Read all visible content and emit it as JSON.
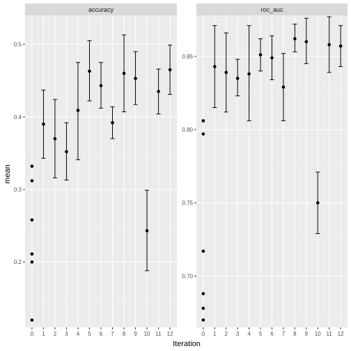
{
  "chart_data": {
    "type": "scatter",
    "xlabel": "Iteration",
    "ylabel": "mean",
    "x_ticks": [
      0,
      1,
      2,
      3,
      4,
      5,
      6,
      7,
      8,
      9,
      10,
      11,
      12
    ],
    "xlim": [
      -0.6,
      12.6
    ],
    "panels": [
      {
        "strip": "accuracy",
        "ylim": [
          0.11,
          0.54
        ],
        "y_ticks": [
          0.2,
          0.3,
          0.4,
          0.5
        ],
        "y_tick_labels": [
          "0.2",
          "0.3",
          "0.4",
          "0.5"
        ],
        "points": [
          {
            "x": 0,
            "y": 0.332
          },
          {
            "x": 0,
            "y": 0.312
          },
          {
            "x": 0,
            "y": 0.258
          },
          {
            "x": 0,
            "y": 0.211
          },
          {
            "x": 0,
            "y": 0.2
          },
          {
            "x": 0,
            "y": 0.12
          },
          {
            "x": 1,
            "y": 0.39,
            "ymin": 0.343,
            "ymax": 0.437
          },
          {
            "x": 2,
            "y": 0.37,
            "ymin": 0.316,
            "ymax": 0.424
          },
          {
            "x": 3,
            "y": 0.352,
            "ymin": 0.313,
            "ymax": 0.392
          },
          {
            "x": 4,
            "y": 0.409,
            "ymin": 0.341,
            "ymax": 0.475
          },
          {
            "x": 5,
            "y": 0.463,
            "ymin": 0.422,
            "ymax": 0.505
          },
          {
            "x": 6,
            "y": 0.443,
            "ymin": 0.412,
            "ymax": 0.475
          },
          {
            "x": 7,
            "y": 0.392,
            "ymin": 0.37,
            "ymax": 0.414
          },
          {
            "x": 8,
            "y": 0.46,
            "ymin": 0.407,
            "ymax": 0.513
          },
          {
            "x": 9,
            "y": 0.453,
            "ymin": 0.417,
            "ymax": 0.49
          },
          {
            "x": 10,
            "y": 0.243,
            "ymin": 0.188,
            "ymax": 0.299
          },
          {
            "x": 11,
            "y": 0.435,
            "ymin": 0.404,
            "ymax": 0.466
          },
          {
            "x": 12,
            "y": 0.465,
            "ymin": 0.431,
            "ymax": 0.499
          }
        ]
      },
      {
        "strip": "roc_auc",
        "ylim": [
          0.665,
          0.878
        ],
        "y_ticks": [
          0.7,
          0.75,
          0.8,
          0.85
        ],
        "y_tick_labels": [
          "0.70",
          "0.75",
          "0.80",
          "0.85"
        ],
        "points": [
          {
            "x": 0,
            "y": 0.806
          },
          {
            "x": 0,
            "y": 0.797
          },
          {
            "x": 0,
            "y": 0.717
          },
          {
            "x": 0,
            "y": 0.688
          },
          {
            "x": 0,
            "y": 0.678
          },
          {
            "x": 0,
            "y": 0.67
          },
          {
            "x": 1,
            "y": 0.843,
            "ymin": 0.815,
            "ymax": 0.871
          },
          {
            "x": 2,
            "y": 0.839,
            "ymin": 0.812,
            "ymax": 0.866
          },
          {
            "x": 3,
            "y": 0.835,
            "ymin": 0.823,
            "ymax": 0.848
          },
          {
            "x": 4,
            "y": 0.838,
            "ymin": 0.806,
            "ymax": 0.871
          },
          {
            "x": 5,
            "y": 0.851,
            "ymin": 0.84,
            "ymax": 0.862
          },
          {
            "x": 6,
            "y": 0.849,
            "ymin": 0.834,
            "ymax": 0.864
          },
          {
            "x": 7,
            "y": 0.829,
            "ymin": 0.806,
            "ymax": 0.852
          },
          {
            "x": 8,
            "y": 0.862,
            "ymin": 0.853,
            "ymax": 0.872
          },
          {
            "x": 9,
            "y": 0.86,
            "ymin": 0.845,
            "ymax": 0.876
          },
          {
            "x": 10,
            "y": 0.75,
            "ymin": 0.729,
            "ymax": 0.771
          },
          {
            "x": 11,
            "y": 0.858,
            "ymin": 0.839,
            "ymax": 0.877
          },
          {
            "x": 12,
            "y": 0.857,
            "ymin": 0.843,
            "ymax": 0.871
          }
        ]
      }
    ],
    "colors": {
      "panel_bg": "#ebebeb",
      "strip_bg": "#d9d9d9",
      "grid_major": "#ffffff",
      "grid_minor": "#f2f2f2",
      "point": "#000000"
    },
    "grid": true,
    "legend": "none"
  }
}
